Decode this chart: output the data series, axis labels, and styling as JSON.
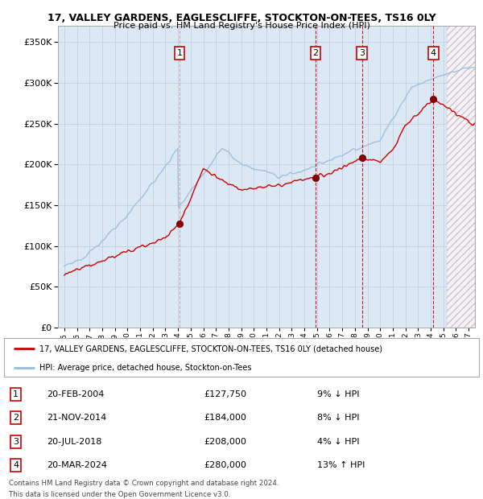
{
  "title": "17, VALLEY GARDENS, EAGLESCLIFFE, STOCKTON-ON-TEES, TS16 0LY",
  "subtitle": "Price paid vs. HM Land Registry's House Price Index (HPI)",
  "ytick_values": [
    0,
    50000,
    100000,
    150000,
    200000,
    250000,
    300000,
    350000
  ],
  "ylim": [
    0,
    370000
  ],
  "xlim_start": 1994.5,
  "xlim_end": 2027.5,
  "legend_line1": "17, VALLEY GARDENS, EAGLESCLIFFE, STOCKTON-ON-TEES, TS16 0LY (detached house)",
  "legend_line2": "HPI: Average price, detached house, Stockton-on-Tees",
  "legend_color1": "#cc0000",
  "legend_color2": "#99bbdd",
  "table_entries": [
    {
      "num": 1,
      "date": "20-FEB-2004",
      "price": "£127,750",
      "hpi": "9% ↓ HPI",
      "year": 2004.12
    },
    {
      "num": 2,
      "date": "21-NOV-2014",
      "price": "£184,000",
      "hpi": "8% ↓ HPI",
      "year": 2014.89
    },
    {
      "num": 3,
      "date": "20-JUL-2018",
      "price": "£208,000",
      "hpi": "4% ↓ HPI",
      "year": 2018.55
    },
    {
      "num": 4,
      "date": "20-MAR-2024",
      "price": "£280,000",
      "hpi": "13% ↑ HPI",
      "year": 2024.21
    }
  ],
  "sale_prices": [
    127750,
    184000,
    208000,
    280000
  ],
  "footer": "Contains HM Land Registry data © Crown copyright and database right 2024.\nThis data is licensed under the Open Government Licence v3.0.",
  "plot_bg": "#dde8f5",
  "grid_color": "#bbccdd",
  "future_start": 2025.3
}
